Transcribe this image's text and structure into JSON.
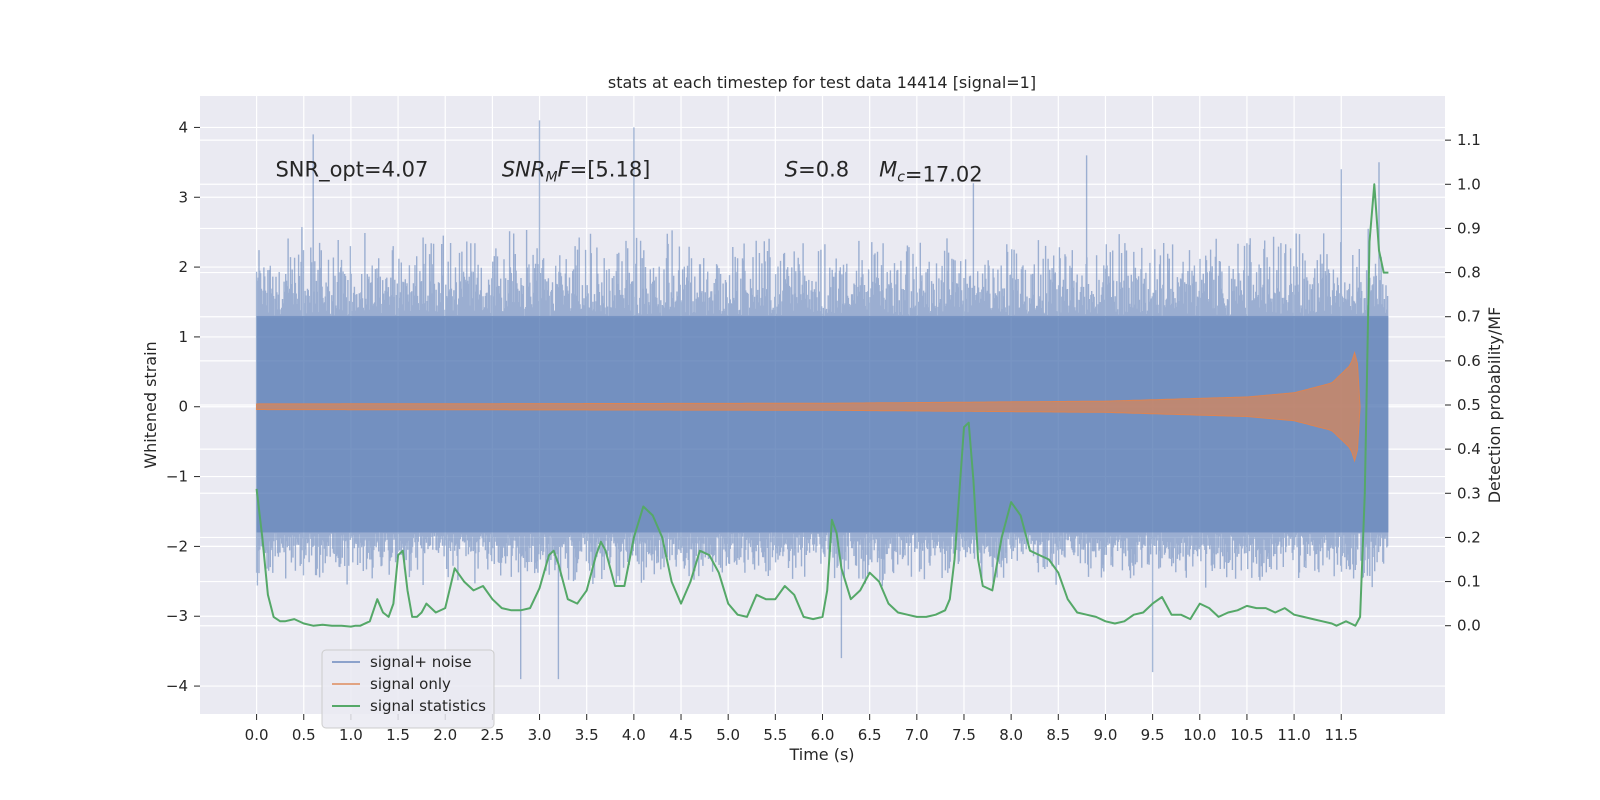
{
  "chart_data": {
    "type": "line",
    "title": "stats at each timestep for test data 14414 [signal=1]",
    "xlabel": "Time (s)",
    "ylabel_left": "Whitened strain",
    "ylabel_right": "Detection probability/MF",
    "xlim": [
      -0.6,
      12.6
    ],
    "ylim_left": [
      -4.4,
      4.45
    ],
    "ylim_right": [
      -0.2,
      1.2
    ],
    "x_ticks": [
      0.0,
      0.5,
      1.0,
      1.5,
      2.0,
      2.5,
      3.0,
      3.5,
      4.0,
      4.5,
      5.0,
      5.5,
      6.0,
      6.5,
      7.0,
      7.5,
      8.0,
      8.5,
      9.0,
      9.5,
      10.0,
      10.5,
      11.0,
      11.5
    ],
    "x_tick_labels": [
      "0.0",
      "0.5",
      "1.0",
      "1.5",
      "2.0",
      "2.5",
      "3.0",
      "3.5",
      "4.0",
      "4.5",
      "5.0",
      "5.5",
      "6.0",
      "6.5",
      "7.0",
      "7.5",
      "8.0",
      "8.5",
      "9.0",
      "9.5",
      "10.0",
      "10.5",
      "11.0",
      "11.5"
    ],
    "y_left_ticks": [
      -4,
      -3,
      -2,
      -1,
      0,
      1,
      2,
      3,
      4
    ],
    "y_left_tick_labels": [
      "−4",
      "−3",
      "−2",
      "−1",
      "0",
      "1",
      "2",
      "3",
      "4"
    ],
    "y_right_ticks": [
      0.0,
      0.1,
      0.2,
      0.3,
      0.4,
      0.5,
      0.6,
      0.7,
      0.8,
      0.9,
      1.0,
      1.1
    ],
    "y_right_tick_labels": [
      "0.0",
      "0.1",
      "0.2",
      "0.3",
      "0.4",
      "0.5",
      "0.6",
      "0.7",
      "0.8",
      "0.9",
      "1.0",
      "1.1"
    ],
    "grid": true,
    "legend_placement": "lower-left",
    "annotations": [
      {
        "text": "SNR_opt=4.07",
        "x": 0.2,
        "y": 3.3
      },
      {
        "text": "SNR_MF=[5.18]",
        "x": 2.6,
        "y": 3.3
      },
      {
        "text": "S=0.8",
        "x": 5.6,
        "y": 3.3
      },
      {
        "text": "M_c=17.02",
        "x": 6.6,
        "y": 3.3
      }
    ],
    "series": [
      {
        "name": "signal+ noise",
        "axis": "left",
        "color": "#4c72b0",
        "opacity": 0.5,
        "kind": "noise_band",
        "x_range": [
          0.0,
          12.0
        ],
        "core_range": [
          -1.8,
          1.3
        ],
        "typical_peak_range": [
          -2.6,
          2.6
        ],
        "notable_peaks": [
          {
            "x": 0.6,
            "y": 3.9
          },
          {
            "x": 3.0,
            "y": 4.1
          },
          {
            "x": 4.0,
            "y": 4.0
          },
          {
            "x": 7.6,
            "y": 3.2
          },
          {
            "x": 8.8,
            "y": 3.6
          },
          {
            "x": 11.5,
            "y": 3.4
          },
          {
            "x": 11.9,
            "y": 3.5
          },
          {
            "x": 3.2,
            "y": -3.9
          },
          {
            "x": 2.8,
            "y": -3.9
          },
          {
            "x": 9.5,
            "y": -3.8
          },
          {
            "x": 6.2,
            "y": -3.6
          }
        ]
      },
      {
        "name": "signal only",
        "axis": "left",
        "color": "#dd8452",
        "kind": "chirp",
        "x_range": [
          0.0,
          11.7
        ],
        "envelope": [
          {
            "x": 0.0,
            "amp": 0.04
          },
          {
            "x": 6.0,
            "amp": 0.05
          },
          {
            "x": 9.0,
            "amp": 0.08
          },
          {
            "x": 10.5,
            "amp": 0.14
          },
          {
            "x": 11.0,
            "amp": 0.2
          },
          {
            "x": 11.4,
            "amp": 0.34
          },
          {
            "x": 11.6,
            "amp": 0.6
          },
          {
            "x": 11.66,
            "amp": 0.85
          },
          {
            "x": 11.7,
            "amp": 0.0
          }
        ]
      },
      {
        "name": "signal statistics",
        "axis": "right",
        "color": "#55a868",
        "kind": "line",
        "x": [
          0.0,
          0.06,
          0.12,
          0.18,
          0.25,
          0.3,
          0.4,
          0.5,
          0.6,
          0.7,
          0.8,
          0.9,
          1.0,
          1.05,
          1.1,
          1.2,
          1.28,
          1.34,
          1.4,
          1.45,
          1.5,
          1.55,
          1.6,
          1.65,
          1.7,
          1.75,
          1.8,
          1.9,
          2.0,
          2.1,
          2.2,
          2.3,
          2.4,
          2.5,
          2.6,
          2.7,
          2.8,
          2.9,
          3.0,
          3.1,
          3.15,
          3.2,
          3.3,
          3.4,
          3.5,
          3.6,
          3.65,
          3.7,
          3.8,
          3.9,
          4.0,
          4.1,
          4.2,
          4.3,
          4.4,
          4.5,
          4.6,
          4.7,
          4.8,
          4.9,
          5.0,
          5.1,
          5.2,
          5.3,
          5.4,
          5.5,
          5.6,
          5.7,
          5.8,
          5.9,
          6.0,
          6.05,
          6.1,
          6.15,
          6.2,
          6.3,
          6.4,
          6.5,
          6.6,
          6.7,
          6.8,
          6.9,
          7.0,
          7.1,
          7.2,
          7.3,
          7.35,
          7.4,
          7.45,
          7.5,
          7.55,
          7.6,
          7.65,
          7.7,
          7.8,
          7.9,
          8.0,
          8.1,
          8.2,
          8.3,
          8.4,
          8.5,
          8.6,
          8.7,
          8.8,
          8.9,
          9.0,
          9.1,
          9.2,
          9.3,
          9.4,
          9.5,
          9.6,
          9.7,
          9.8,
          9.9,
          10.0,
          10.1,
          10.2,
          10.3,
          10.4,
          10.5,
          10.6,
          10.7,
          10.8,
          10.9,
          11.0,
          11.1,
          11.2,
          11.3,
          11.4,
          11.45,
          11.5,
          11.55,
          11.6,
          11.65,
          11.7,
          11.75,
          11.8,
          11.85,
          11.9,
          11.95,
          12.0
        ],
        "y": [
          0.31,
          0.2,
          0.07,
          0.02,
          0.01,
          0.01,
          0.015,
          0.005,
          0.0,
          0.002,
          0.0,
          0.0,
          -0.002,
          0.0,
          0.0,
          0.01,
          0.06,
          0.03,
          0.02,
          0.05,
          0.16,
          0.17,
          0.08,
          0.02,
          0.02,
          0.03,
          0.05,
          0.03,
          0.04,
          0.13,
          0.1,
          0.08,
          0.09,
          0.06,
          0.04,
          0.035,
          0.035,
          0.04,
          0.085,
          0.16,
          0.17,
          0.14,
          0.06,
          0.05,
          0.08,
          0.16,
          0.19,
          0.17,
          0.09,
          0.09,
          0.2,
          0.27,
          0.25,
          0.2,
          0.1,
          0.05,
          0.1,
          0.17,
          0.16,
          0.12,
          0.05,
          0.025,
          0.02,
          0.07,
          0.06,
          0.06,
          0.09,
          0.07,
          0.02,
          0.015,
          0.02,
          0.08,
          0.24,
          0.21,
          0.13,
          0.06,
          0.08,
          0.12,
          0.1,
          0.05,
          0.03,
          0.025,
          0.02,
          0.02,
          0.025,
          0.035,
          0.06,
          0.15,
          0.3,
          0.45,
          0.46,
          0.33,
          0.15,
          0.09,
          0.08,
          0.2,
          0.28,
          0.25,
          0.17,
          0.16,
          0.15,
          0.12,
          0.06,
          0.03,
          0.025,
          0.02,
          0.01,
          0.005,
          0.01,
          0.025,
          0.03,
          0.05,
          0.065,
          0.025,
          0.025,
          0.015,
          0.05,
          0.04,
          0.02,
          0.03,
          0.035,
          0.045,
          0.04,
          0.04,
          0.03,
          0.04,
          0.025,
          0.02,
          0.015,
          0.01,
          0.005,
          0.0,
          0.005,
          0.01,
          0.005,
          0.0,
          0.02,
          0.3,
          0.87,
          1.0,
          0.85,
          0.8,
          0.8
        ]
      }
    ],
    "legend": [
      "signal+ noise",
      "signal only",
      "signal statistics"
    ]
  }
}
